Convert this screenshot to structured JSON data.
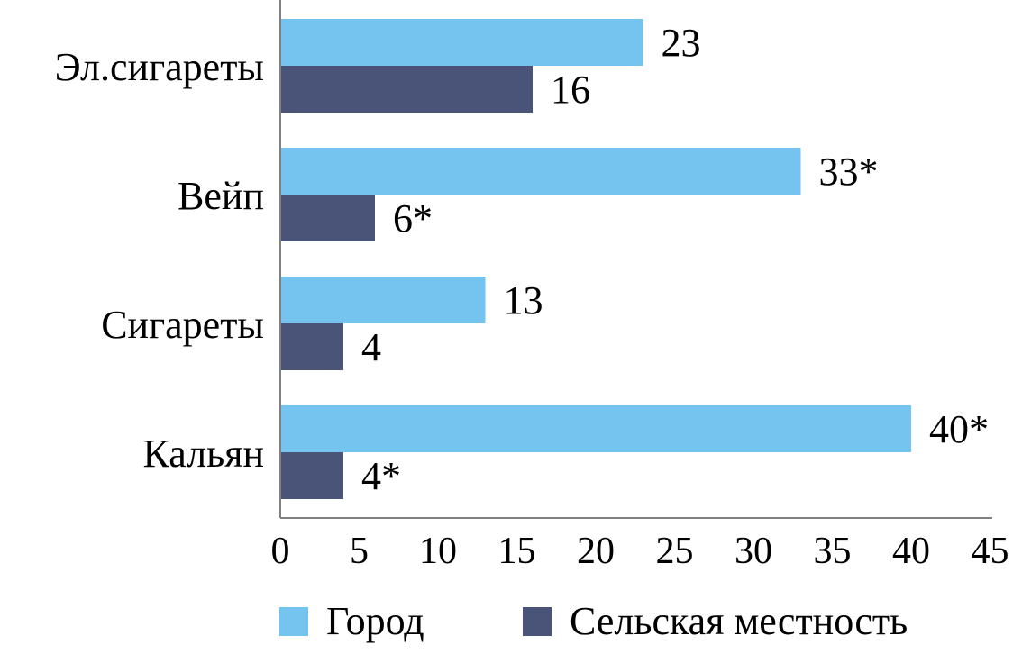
{
  "chart_data": {
    "type": "bar",
    "orientation": "horizontal",
    "categories": [
      "Эл.сигареты",
      "Вейп",
      "Сигареты",
      "Кальян"
    ],
    "series": [
      {
        "name": "Город",
        "color": "#75C4EF",
        "values": [
          23,
          33,
          13,
          40
        ],
        "labels": [
          "23",
          "33*",
          "13",
          "40*"
        ]
      },
      {
        "name": "Сельская местность",
        "color": "#495478",
        "values": [
          16,
          6,
          4,
          4
        ],
        "labels": [
          "16",
          "6*",
          "4",
          "4*"
        ]
      }
    ],
    "x_ticks": [
      "0",
      "5",
      "10",
      "15",
      "20",
      "25",
      "30",
      "35",
      "40",
      "45"
    ],
    "xlim": [
      0,
      45
    ],
    "grid": false,
    "legend_position": "bottom"
  }
}
